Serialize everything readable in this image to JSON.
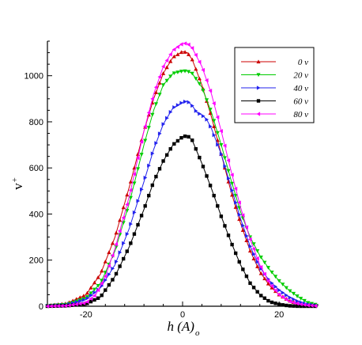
{
  "chart_data": {
    "type": "line",
    "xlabel_main": "h (A)",
    "xlabel_sub": "o",
    "ylabel_main": "v",
    "ylabel_sup": "+",
    "xlim": [
      -28,
      28
    ],
    "ylim": [
      0,
      1150
    ],
    "x_ticks": [
      -20,
      0,
      20
    ],
    "x_tick_labels": [
      "-20",
      "0",
      "20"
    ],
    "y_ticks": [
      0,
      200,
      400,
      600,
      800,
      1000
    ],
    "y_tick_labels": [
      "0",
      "200",
      "400",
      "600",
      "800",
      "1000"
    ],
    "legend_position": "top-right",
    "grid": false,
    "series": [
      {
        "name": "0  v",
        "color": "#cc0000",
        "marker": "triangle-up",
        "x": [
          -28,
          -24,
          -20,
          -17,
          -14,
          -11,
          -8,
          -6,
          -4,
          -2,
          0,
          1,
          2,
          4,
          6,
          8,
          10,
          12,
          14,
          16,
          18,
          20,
          22,
          24,
          26,
          28
        ],
        "y": [
          3,
          12,
          50,
          140,
          300,
          520,
          760,
          900,
          1010,
          1080,
          1105,
          1100,
          1070,
          960,
          820,
          660,
          500,
          360,
          240,
          150,
          90,
          50,
          25,
          10,
          4,
          2
        ]
      },
      {
        "name": "20  v",
        "color": "#00cc00",
        "marker": "triangle-down",
        "x": [
          -28,
          -24,
          -20,
          -17,
          -14,
          -11,
          -8,
          -6,
          -4,
          -2,
          0,
          1,
          2,
          4,
          6,
          8,
          10,
          12,
          14,
          16,
          18,
          20,
          22,
          24,
          26,
          28
        ],
        "y": [
          2,
          8,
          35,
          100,
          240,
          450,
          700,
          850,
          960,
          1010,
          1020,
          1020,
          1010,
          950,
          840,
          700,
          550,
          410,
          300,
          220,
          160,
          110,
          70,
          40,
          15,
          5
        ]
      },
      {
        "name": "40  v",
        "color": "#2222ee",
        "marker": "triangle-right",
        "x": [
          -28,
          -24,
          -20,
          -17,
          -14,
          -11,
          -8,
          -6,
          -4,
          -2,
          0,
          1,
          2,
          3,
          4,
          5,
          6,
          8,
          10,
          12,
          14,
          16,
          18,
          20,
          22,
          24,
          26,
          28
        ],
        "y": [
          2,
          6,
          30,
          80,
          180,
          340,
          540,
          680,
          790,
          860,
          885,
          890,
          870,
          840,
          830,
          810,
          770,
          660,
          520,
          380,
          260,
          170,
          110,
          70,
          40,
          20,
          8,
          3
        ]
      },
      {
        "name": "60  v",
        "color": "#000000",
        "marker": "square",
        "x": [
          -28,
          -24,
          -20,
          -17,
          -14,
          -11,
          -8,
          -6,
          -4,
          -2,
          0,
          1,
          2,
          4,
          6,
          8,
          10,
          12,
          14,
          16,
          18,
          20,
          22,
          24,
          26,
          28
        ],
        "y": [
          0,
          2,
          10,
          40,
          130,
          260,
          420,
          540,
          630,
          700,
          735,
          740,
          720,
          620,
          510,
          390,
          280,
          180,
          100,
          50,
          20,
          8,
          2,
          0,
          0,
          0
        ]
      },
      {
        "name": "80  v",
        "color": "#ff00ff",
        "marker": "triangle-left",
        "x": [
          -28,
          -24,
          -20,
          -18,
          -16,
          -14,
          -11,
          -8,
          -6,
          -4,
          -2,
          0,
          1,
          2,
          4,
          6,
          8,
          10,
          12,
          14,
          16,
          18,
          20,
          22,
          24,
          26,
          28
        ],
        "y": [
          0,
          2,
          15,
          50,
          130,
          250,
          480,
          760,
          920,
          1040,
          1110,
          1140,
          1140,
          1120,
          1040,
          920,
          760,
          590,
          430,
          290,
          180,
          100,
          50,
          22,
          10,
          4,
          1
        ]
      }
    ]
  }
}
